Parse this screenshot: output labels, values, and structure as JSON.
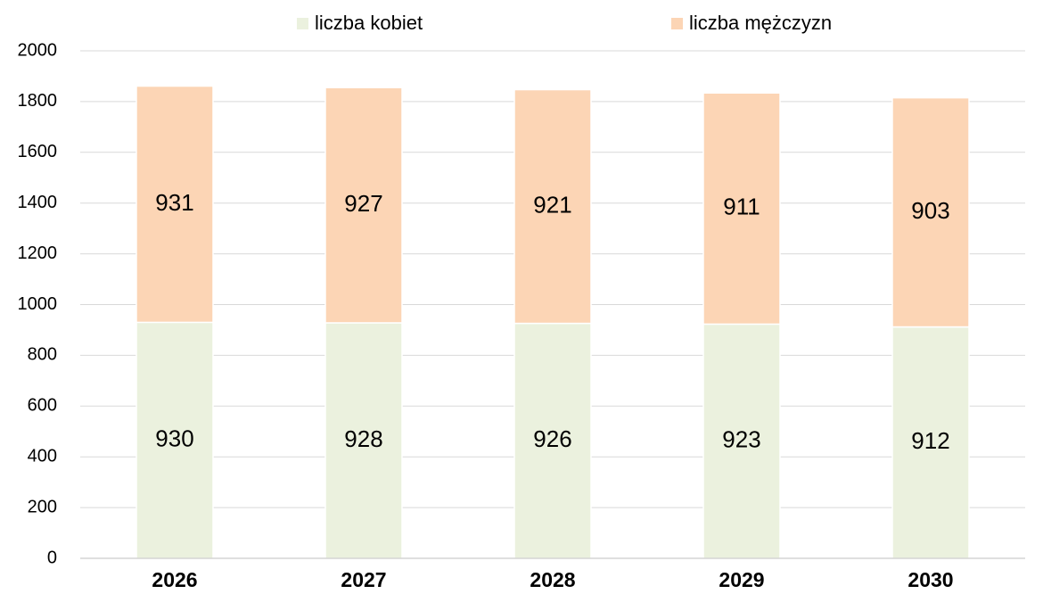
{
  "chart_data": {
    "type": "stacked_bar",
    "categories": [
      "2026",
      "2027",
      "2028",
      "2029",
      "2030"
    ],
    "series": [
      {
        "name": "liczba kobiet",
        "color": "#ebf1de",
        "values": [
          930,
          928,
          926,
          923,
          912
        ]
      },
      {
        "name": "liczba mężczyzn",
        "color": "#fcd5b5",
        "values": [
          931,
          927,
          921,
          911,
          903
        ]
      }
    ],
    "ylim": [
      0,
      2000
    ],
    "yticks": [
      0,
      200,
      400,
      600,
      800,
      1000,
      1200,
      1400,
      1600,
      1800,
      2000
    ],
    "grid": true,
    "legend": "top"
  }
}
